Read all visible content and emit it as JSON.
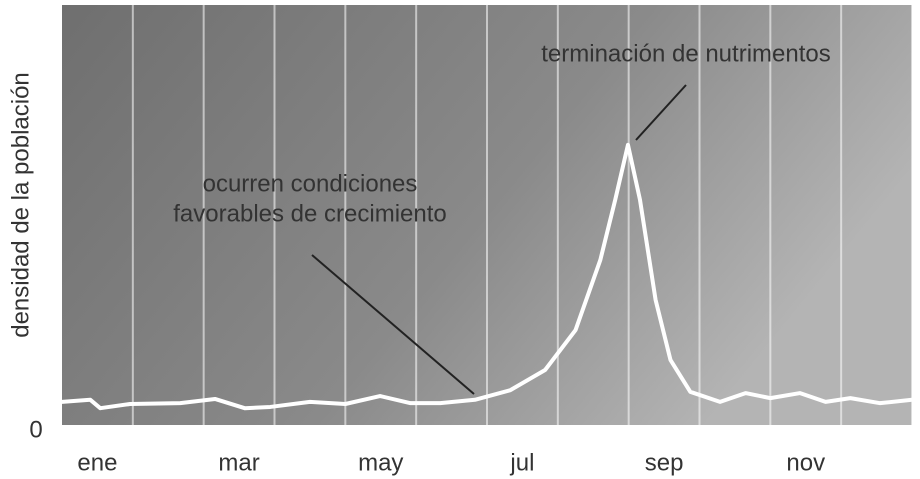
{
  "chart_data": {
    "type": "line",
    "ylabel": "densidad de la población",
    "categories": [
      "ene",
      null,
      "mar",
      null,
      "may",
      null,
      "jul",
      null,
      "sep",
      null,
      "nov",
      null
    ],
    "xlim": [
      0,
      12
    ],
    "ylim": [
      0,
      100
    ],
    "yticks": [
      0
    ],
    "series": [
      {
        "color": "#ffffff",
        "x": [
          0,
          0.4,
          0.54,
          0.96,
          1.67,
          2.16,
          2.58,
          2.94,
          3.5,
          4.0,
          4.49,
          4.92,
          5.34,
          5.83,
          6.33,
          6.82,
          7.25,
          7.6,
          7.81,
          7.99,
          8.16,
          8.38,
          8.59,
          8.87,
          9.29,
          9.65,
          10.0,
          10.42,
          10.78,
          11.13,
          11.55,
          12
        ],
        "values": [
          5.5,
          6,
          4,
          5,
          5.2,
          6.2,
          4,
          4.3,
          5.5,
          5,
          6.9,
          5.2,
          5.2,
          6,
          8.3,
          13.1,
          22.6,
          39.3,
          53.6,
          66.7,
          53.6,
          29.8,
          15.5,
          7.9,
          5.5,
          7.6,
          6.4,
          7.6,
          5.5,
          6.4,
          5.2,
          6
        ]
      }
    ],
    "annotations": [
      {
        "text": [
          "terminación de nutrimentos"
        ]
      },
      {
        "text": [
          "ocurren condiciones",
          "favorables de crecimiento"
        ]
      }
    ]
  }
}
